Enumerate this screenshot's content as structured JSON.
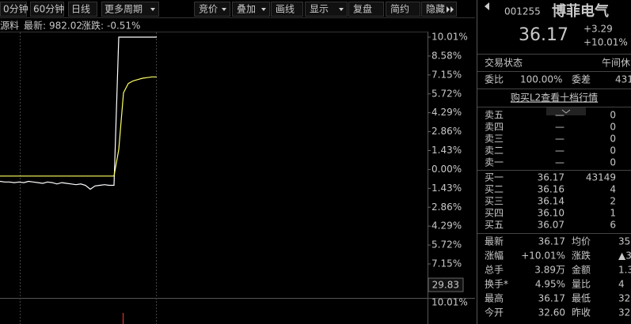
{
  "toolbar": {
    "left": [
      "0分钟",
      "60分钟",
      "日线",
      "更多周期"
    ],
    "right": [
      "竞价",
      "叠加",
      "画线",
      "显示",
      "复盘",
      "简约",
      "隐藏"
    ]
  },
  "info_bar": {
    "label": "源料",
    "latest_label": "最新:",
    "latest": "982.02",
    "change_label": "涨跌:",
    "change": "-0.51%"
  },
  "chart_data": {
    "type": "line",
    "ylim": [
      -7.15,
      10.01
    ],
    "yticks": [
      {
        "value": 10.01,
        "label": "10.01%"
      },
      {
        "value": 8.58,
        "label": "8.58%"
      },
      {
        "value": 7.15,
        "label": "7.15%"
      },
      {
        "value": 5.72,
        "label": "5.72%"
      },
      {
        "value": 4.29,
        "label": "4.29%"
      },
      {
        "value": 2.86,
        "label": "2.86%"
      },
      {
        "value": 1.43,
        "label": "1.43%"
      },
      {
        "value": 0,
        "label": "0.00%"
      },
      {
        "value": -1.43,
        "label": "1.43%"
      },
      {
        "value": -2.86,
        "label": "2.86%"
      },
      {
        "value": -4.29,
        "label": "4.29%"
      },
      {
        "value": -5.72,
        "label": "5.72%"
      },
      {
        "value": -7.15,
        "label": "7.15%"
      }
    ],
    "series": [
      {
        "color": "#ffffff",
        "values": [
          -0.9,
          -0.95,
          -0.95,
          -1.0,
          -0.95,
          -1.0,
          -0.9,
          -0.95,
          -1.0,
          -1.05,
          -0.95,
          -1.0,
          -1.1,
          -1.0,
          -1.05,
          -1.1,
          -1.15,
          -1.1,
          -1.2,
          -1.5,
          -1.25,
          -1.2,
          -1.15,
          -1.2,
          -1.2,
          10.01,
          10.01,
          10.01,
          10.01,
          10.01,
          10.01,
          10.01,
          10.01,
          10.01
        ]
      },
      {
        "color": "#ffff66",
        "values": [
          -0.5,
          -0.5,
          -0.5,
          -0.5,
          -0.5,
          -0.5,
          -0.5,
          -0.5,
          -0.5,
          -0.5,
          -0.5,
          -0.5,
          -0.5,
          -0.5,
          -0.5,
          -0.5,
          -0.5,
          -0.5,
          -0.5,
          -0.5,
          -0.5,
          -0.5,
          -0.5,
          -0.5,
          -0.5,
          1.5,
          5.8,
          6.5,
          6.7,
          6.8,
          6.9,
          6.95,
          7.0,
          7.0
        ]
      }
    ]
  },
  "volume_panel": {
    "max_label": "29.83",
    "ratio_label": "10.01%"
  },
  "quote": {
    "code": "001255",
    "name": "博菲电气",
    "price": "36.17",
    "change": "+3.29",
    "change_pct": "+10.01%",
    "status_label": "交易状态",
    "status": "午间休",
    "ratio_label": "委比",
    "ratio": "100.00%",
    "diff_label": "委差",
    "diff": "431",
    "l2_link": "购买L2查看十档行情",
    "sell": [
      {
        "label": "卖五",
        "price": "—",
        "volume": "0"
      },
      {
        "label": "卖四",
        "price": "—",
        "volume": "0"
      },
      {
        "label": "卖三",
        "price": "—",
        "volume": "0"
      },
      {
        "label": "卖二",
        "price": "—",
        "volume": "0"
      },
      {
        "label": "卖一",
        "price": "—",
        "volume": "0"
      }
    ],
    "buy": [
      {
        "label": "买一",
        "price": "36.17",
        "volume": "43149"
      },
      {
        "label": "买二",
        "price": "36.16",
        "volume": "4"
      },
      {
        "label": "买三",
        "price": "36.14",
        "volume": "2"
      },
      {
        "label": "买四",
        "price": "36.10",
        "volume": "1"
      },
      {
        "label": "买五",
        "price": "36.07",
        "volume": "6"
      }
    ],
    "stats": [
      {
        "label": "最新",
        "value": "36.17",
        "label2": "均价",
        "value2": "35"
      },
      {
        "label": "涨幅",
        "value": "+10.01%",
        "label2": "涨跌",
        "value2": "▲3"
      },
      {
        "label": "总手",
        "value": "3.89万",
        "label2": "金额",
        "value2": "1.3"
      },
      {
        "label": "换手*",
        "value": "4.95%",
        "label2": "量比",
        "value2": "4"
      },
      {
        "label": "最高",
        "value": "36.17",
        "label2": "最低",
        "value2": "32"
      },
      {
        "label": "今开",
        "value": "32.60",
        "label2": "昨收",
        "value2": "32"
      }
    ]
  }
}
